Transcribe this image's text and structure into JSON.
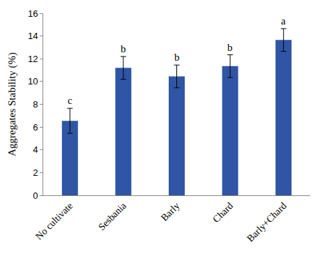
{
  "chart_data": {
    "type": "bar",
    "categories": [
      "No cultivate",
      "Sesbania",
      "Barly",
      "Chard",
      "Barly+Chard"
    ],
    "values": [
      6.55,
      11.2,
      10.45,
      11.35,
      13.65
    ],
    "errors": [
      1.1,
      1.0,
      1.0,
      1.0,
      1.0
    ],
    "annotations": [
      "c",
      "b",
      "b",
      "b",
      "a"
    ],
    "color": "#2f55a4",
    "y_label": "Aggregates Stability (%)",
    "ylim": [
      0,
      16
    ],
    "yticks": [
      0,
      2,
      4,
      6,
      8,
      10,
      12,
      14,
      16
    ],
    "grid": false
  }
}
